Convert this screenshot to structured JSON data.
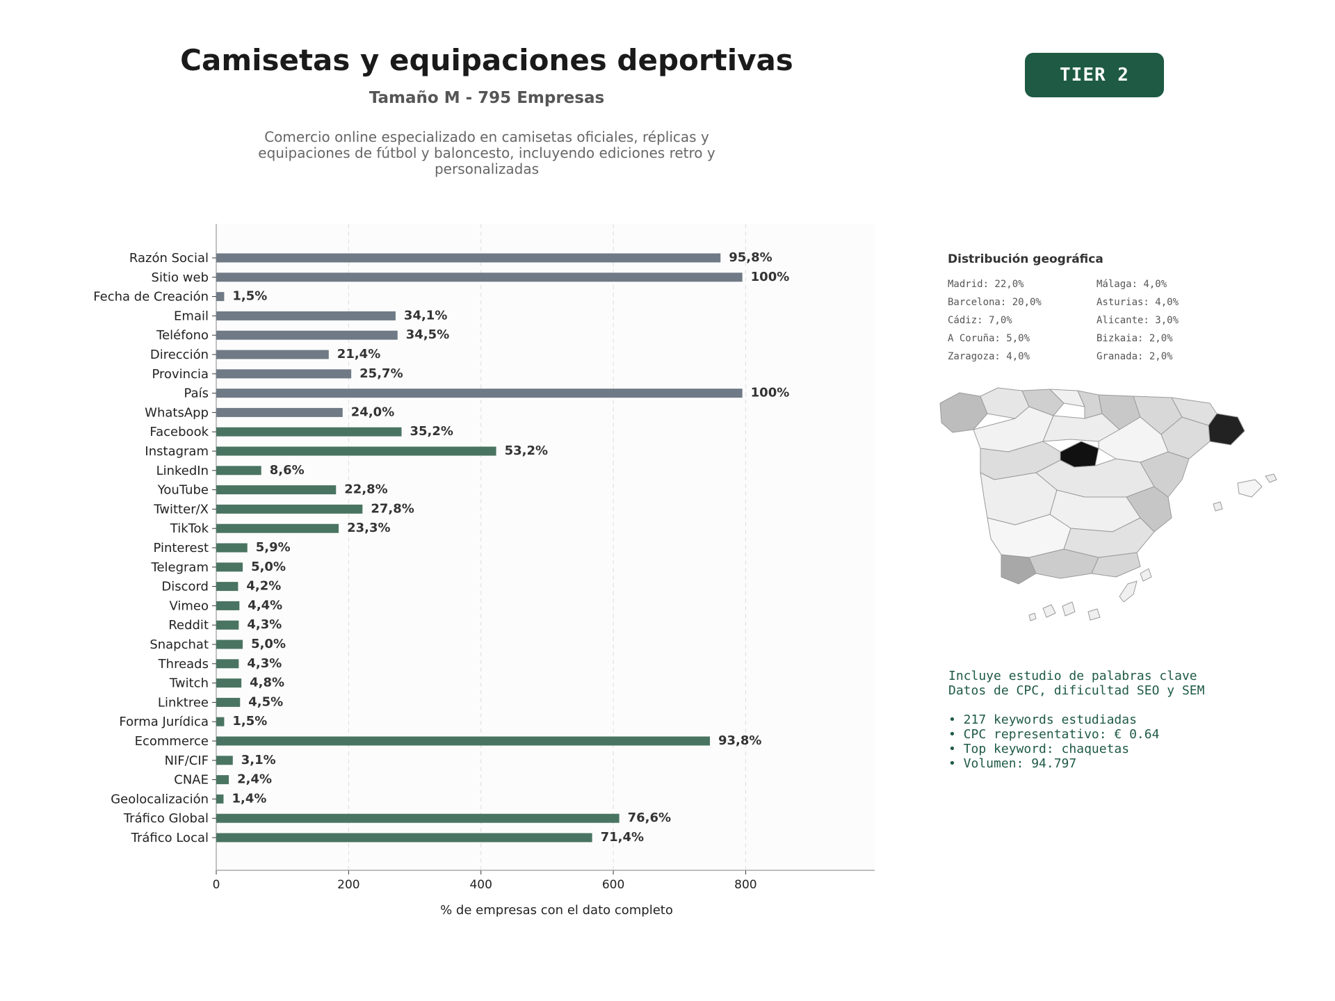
{
  "header": {
    "title": "Camisetas y equipaciones deportivas",
    "subtitle": "Tamaño M - 795 Empresas",
    "description": "Comercio online especializado en camisetas oficiales, réplicas y equipaciones de fútbol y baloncesto, incluyendo ediciones retro y personalizadas",
    "tier": "TIER 2"
  },
  "chart_data": {
    "type": "bar",
    "orientation": "horizontal",
    "xlabel": "% de empresas con el dato completo",
    "xlim": [
      0,
      995
    ],
    "xticks": [
      0,
      200,
      400,
      600,
      800
    ],
    "total": 795,
    "grid": "vertical dashed",
    "categories": [
      "Razón Social",
      "Sitio web",
      "Fecha de Creación",
      "Email",
      "Teléfono",
      "Dirección",
      "Provincia",
      "País",
      "WhatsApp",
      "Facebook",
      "Instagram",
      "LinkedIn",
      "YouTube",
      "Twitter/X",
      "TikTok",
      "Pinterest",
      "Telegram",
      "Discord",
      "Vimeo",
      "Reddit",
      "Snapchat",
      "Threads",
      "Twitch",
      "Linktree",
      "Forma Jurídica",
      "Ecommerce",
      "NIF/CIF",
      "CNAE",
      "Geolocalización",
      "Tráfico Global",
      "Tráfico Local"
    ],
    "values": [
      762,
      795,
      12,
      271,
      274,
      170,
      204,
      795,
      191,
      280,
      423,
      68,
      181,
      221,
      185,
      47,
      40,
      33,
      35,
      34,
      40,
      34,
      38,
      36,
      12,
      746,
      25,
      19,
      11,
      609,
      568
    ],
    "labels": [
      "95,8%",
      "100%",
      "1,5%",
      "34,1%",
      "34,5%",
      "21,4%",
      "25,7%",
      "100%",
      "24,0%",
      "35,2%",
      "53,2%",
      "8,6%",
      "22,8%",
      "27,8%",
      "23,3%",
      "5,9%",
      "5,0%",
      "4,2%",
      "4,4%",
      "4,3%",
      "5,0%",
      "4,3%",
      "4,8%",
      "4,5%",
      "1,5%",
      "93,8%",
      "3,1%",
      "2,4%",
      "1,4%",
      "76,6%",
      "71,4%"
    ],
    "groups": [
      "basic",
      "basic",
      "basic",
      "basic",
      "basic",
      "basic",
      "basic",
      "basic",
      "basic",
      "social",
      "social",
      "social",
      "social",
      "social",
      "social",
      "social",
      "social",
      "social",
      "social",
      "social",
      "social",
      "social",
      "social",
      "social",
      "social",
      "social",
      "social",
      "social",
      "social",
      "social",
      "social"
    ],
    "colors": {
      "basic": "#6f7a86",
      "social": "#4a7462"
    }
  },
  "geo": {
    "title": "Distribución geográfica",
    "items": [
      "Madrid: 22,0%",
      "Barcelona: 20,0%",
      "Cádiz: 7,0%",
      "A Coruña: 5,0%",
      "Zaragoza: 4,0%",
      "Málaga: 4,0%",
      "Asturias: 4,0%",
      "Alicante: 3,0%",
      "Bizkaia: 2,0%",
      "Granada: 2,0%"
    ]
  },
  "keywords": {
    "line1": "Incluye estudio de palabras clave",
    "line2": "Datos de CPC, dificultad SEO y SEM",
    "bullet1": "• 217 keywords estudiadas",
    "bullet2": "• CPC representativo: € 0.64",
    "bullet3": "• Top keyword: chaquetas",
    "bullet4": "• Volumen: 94.797"
  }
}
